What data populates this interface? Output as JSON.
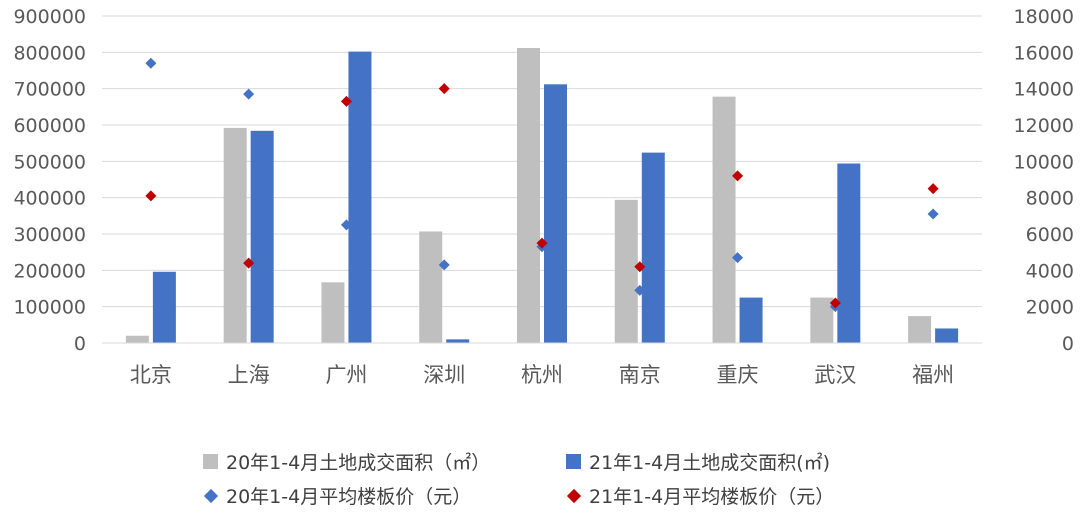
{
  "chart_data": {
    "type": "bar",
    "categories": [
      "北京",
      "上海",
      "广州",
      "深圳",
      "杭州",
      "南京",
      "重庆",
      "武汉",
      "福州"
    ],
    "series": [
      {
        "name": "20年1-4月土地成交面积（㎡）",
        "type": "bar",
        "axis": "left",
        "color": "#bfbfbf",
        "values": [
          20000,
          592000,
          167000,
          307000,
          812000,
          394000,
          678000,
          125000,
          74000
        ]
      },
      {
        "name": "21年1-4月土地成交面积(㎡)",
        "type": "bar",
        "axis": "left",
        "color": "#4472c4",
        "values": [
          196000,
          584000,
          802000,
          10000,
          712000,
          524000,
          125000,
          494000,
          40000
        ]
      },
      {
        "name": "20年1-4月平均楼板价（元）",
        "type": "scatter",
        "axis": "right",
        "color": "#4472c4",
        "values": [
          15400,
          13700,
          6500,
          4300,
          5300,
          2900,
          4700,
          2000,
          7100
        ]
      },
      {
        "name": "21年1-4月平均楼板价（元）",
        "type": "scatter",
        "axis": "right",
        "color": "#c00000",
        "values": [
          8100,
          4400,
          13300,
          14000,
          5500,
          4200,
          9200,
          2200,
          8500
        ]
      }
    ],
    "y_left": {
      "min": 0,
      "max": 900000,
      "step": 100000
    },
    "y_right": {
      "min": 0,
      "max": 18000,
      "step": 2000
    },
    "grid": true,
    "legend_position": "bottom"
  }
}
